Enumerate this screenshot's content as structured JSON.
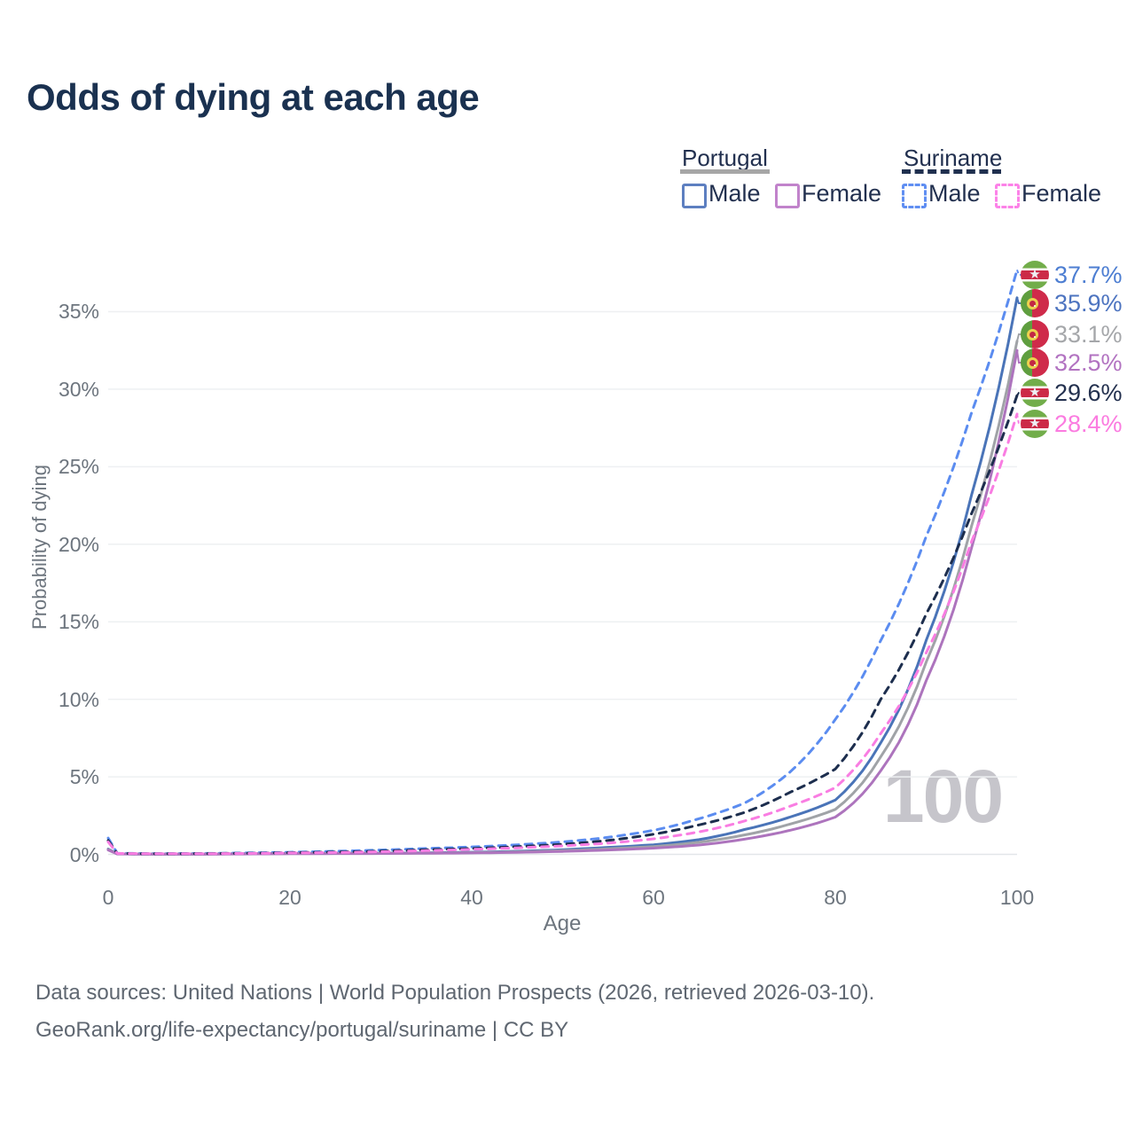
{
  "title": "Odds of dying at each age",
  "legend": {
    "groups": [
      {
        "country": "Portugal",
        "line_style": "solid",
        "underline_color": "#a6a6a6",
        "items": [
          {
            "label": "Male",
            "color": "#5d7fc0",
            "dashed": false
          },
          {
            "label": "Female",
            "color": "#c183cb",
            "dashed": false
          }
        ]
      },
      {
        "country": "Suriname",
        "line_style": "dashed",
        "underline_color": "#20304f",
        "items": [
          {
            "label": "Male",
            "color": "#5f8ef2",
            "dashed": true
          },
          {
            "label": "Female",
            "color": "#fc82e8",
            "dashed": true
          }
        ]
      }
    ]
  },
  "chart_data": {
    "type": "line",
    "title": "Odds of dying at each age",
    "xlabel": "Age",
    "ylabel": "Probability of dying",
    "xlim": [
      0,
      100
    ],
    "ylim": [
      0,
      38
    ],
    "grid": "horizontal",
    "legend_position": "top-right",
    "watermark": "100",
    "x_ticks": [
      {
        "label": "0",
        "value": 0
      },
      {
        "label": "20",
        "value": 20
      },
      {
        "label": "40",
        "value": 40
      },
      {
        "label": "60",
        "value": 60
      },
      {
        "label": "80",
        "value": 80
      },
      {
        "label": "100",
        "value": 100
      }
    ],
    "y_ticks": [
      {
        "label": "0%",
        "value": 0
      },
      {
        "label": "5%",
        "value": 5
      },
      {
        "label": "10%",
        "value": 10
      },
      {
        "label": "15%",
        "value": 15
      },
      {
        "label": "20%",
        "value": 20
      },
      {
        "label": "25%",
        "value": 25
      },
      {
        "label": "30%",
        "value": 30
      },
      {
        "label": "35%",
        "value": 35
      }
    ],
    "ages": [
      0,
      1,
      5,
      10,
      15,
      20,
      25,
      30,
      35,
      40,
      45,
      50,
      55,
      60,
      65,
      70,
      75,
      80,
      85,
      90,
      95,
      100
    ],
    "series": [
      {
        "name": "Suriname Male",
        "country": "Suriname",
        "sex": "male",
        "style": "dashed",
        "color": "#5b8cf0",
        "flag": "suriname",
        "end_label": "37.7%",
        "label_color": "#4d7ed2",
        "values": [
          1.05,
          0.07,
          0.05,
          0.06,
          0.09,
          0.14,
          0.2,
          0.28,
          0.38,
          0.48,
          0.62,
          0.8,
          1.1,
          1.55,
          2.3,
          3.3,
          5.3,
          8.7,
          13.8,
          20.5,
          28.5,
          37.7
        ]
      },
      {
        "name": "Portugal Male",
        "country": "Portugal",
        "sex": "male",
        "style": "solid",
        "color": "#4a74b8",
        "flag": "portugal",
        "end_label": "35.9%",
        "label_color": "#4d74c0",
        "values": [
          0.35,
          0.03,
          0.02,
          0.02,
          0.04,
          0.06,
          0.07,
          0.08,
          0.1,
          0.14,
          0.2,
          0.3,
          0.45,
          0.62,
          0.95,
          1.6,
          2.4,
          3.5,
          7.2,
          13.8,
          23.2,
          35.9
        ]
      },
      {
        "name": "Portugal Total",
        "country": "Portugal",
        "sex": "total",
        "style": "solid",
        "color": "#a0a3a7",
        "flag": "portugal",
        "end_label": "33.1%",
        "label_color": "#a5a7aa",
        "values": [
          0.32,
          0.03,
          0.015,
          0.015,
          0.03,
          0.05,
          0.06,
          0.07,
          0.08,
          0.11,
          0.16,
          0.24,
          0.36,
          0.5,
          0.78,
          1.25,
          1.95,
          2.9,
          6.3,
          12.4,
          21.2,
          33.1
        ]
      },
      {
        "name": "Portugal Female",
        "country": "Portugal",
        "sex": "female",
        "style": "solid",
        "color": "#ad74bd",
        "flag": "portugal",
        "end_label": "32.5%",
        "label_color": "#b273c1",
        "values": [
          0.28,
          0.025,
          0.015,
          0.015,
          0.025,
          0.04,
          0.05,
          0.055,
          0.07,
          0.09,
          0.13,
          0.19,
          0.28,
          0.4,
          0.6,
          0.98,
          1.55,
          2.4,
          5.4,
          11.2,
          19.8,
          32.5
        ]
      },
      {
        "name": "Suriname Total",
        "country": "Suriname",
        "sex": "total",
        "style": "dashed",
        "color": "#1d2e4e",
        "flag": "suriname",
        "end_label": "29.6%",
        "label_color": "#23304e",
        "values": [
          0.9,
          0.06,
          0.04,
          0.05,
          0.07,
          0.11,
          0.15,
          0.21,
          0.3,
          0.38,
          0.5,
          0.65,
          0.9,
          1.3,
          1.9,
          2.7,
          4.0,
          5.5,
          10.0,
          15.5,
          22.0,
          29.6
        ]
      },
      {
        "name": "Suriname Female",
        "country": "Suriname",
        "sex": "female",
        "style": "dashed",
        "color": "#f97de2",
        "flag": "suriname",
        "end_label": "28.4%",
        "label_color": "#fb7be0",
        "values": [
          0.8,
          0.06,
          0.04,
          0.04,
          0.06,
          0.09,
          0.12,
          0.17,
          0.24,
          0.32,
          0.42,
          0.55,
          0.72,
          1.0,
          1.45,
          2.15,
          3.1,
          4.3,
          7.8,
          13.0,
          20.2,
          28.4
        ]
      }
    ]
  },
  "footer": {
    "line1": "Data sources: United Nations | World Population Prospects (2026, retrieved 2026-03-10).",
    "line2": "GeoRank.org/life-expectancy/portugal/suriname | CC BY"
  }
}
